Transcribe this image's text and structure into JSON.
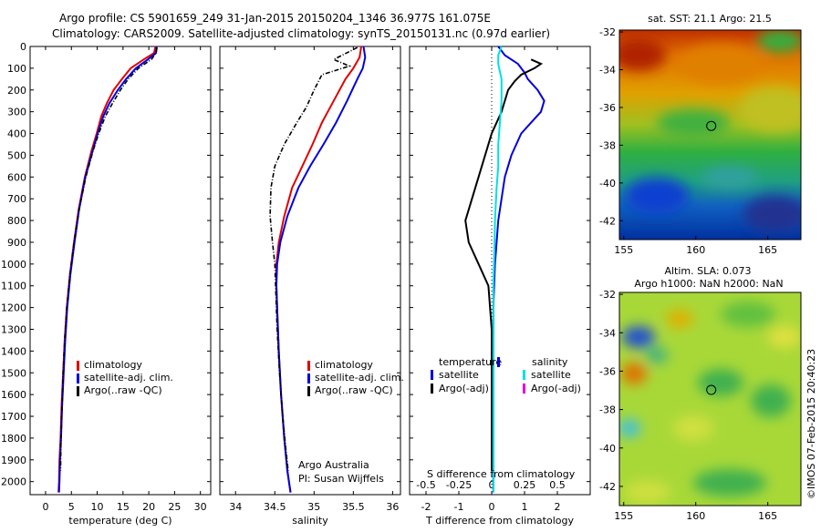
{
  "header": {
    "line1": "Argo profile: CS 5901659_249 31-Jan-2015 20150204_1346 36.977S 161.075E",
    "line2": "Climatology: CARS2009. Satellite-adjusted climatology: synTS_20150131.nc (0.97d earlier)"
  },
  "colors": {
    "climatology": "#e00000",
    "satellite": "#0000e0",
    "argo": "#000000",
    "satellite_salinity": "#00e0e0",
    "argo_salinity_adj": "#e000e0"
  },
  "chart_data": [
    {
      "type": "line",
      "title": "",
      "xlabel": "temperature (deg C)",
      "ylabel": "",
      "xlim": [
        -3,
        32
      ],
      "ylim": [
        2060,
        0
      ],
      "xticks": [
        "0",
        "5",
        "10",
        "15",
        "20",
        "25",
        "30"
      ],
      "yticks": [
        "0",
        "100",
        "200",
        "300",
        "400",
        "500",
        "600",
        "700",
        "800",
        "900",
        "1000",
        "1100",
        "1200",
        "1300",
        "1400",
        "1500",
        "1600",
        "1700",
        "1800",
        "1900",
        "2000"
      ],
      "legend": [
        "climatology",
        "satellite-adj. clim.",
        "Argo(..raw -QC)"
      ],
      "series": [
        {
          "name": "climatology",
          "style": "solid",
          "color": "#e00000",
          "x": [
            21.3,
            21.0,
            19.0,
            16.5,
            14.8,
            13.2,
            11.9,
            10.8,
            9.9,
            8.9,
            7.6,
            6.4,
            5.5,
            4.7,
            4.1,
            3.7,
            3.4,
            3.1,
            2.9,
            2.7,
            2.6,
            2.5
          ],
          "y": [
            0,
            30,
            60,
            100,
            150,
            200,
            260,
            320,
            400,
            480,
            600,
            750,
            900,
            1050,
            1200,
            1350,
            1500,
            1650,
            1800,
            1900,
            2000,
            2050
          ]
        },
        {
          "name": "satellite-adj. clim.",
          "style": "solid",
          "color": "#0000e0",
          "x": [
            21.5,
            21.4,
            19.8,
            17.5,
            15.6,
            14.0,
            12.4,
            11.2,
            10.1,
            9.1,
            7.7,
            6.5,
            5.6,
            4.8,
            4.2,
            3.8,
            3.5,
            3.2,
            3.0,
            2.8,
            2.7,
            2.6
          ],
          "y": [
            0,
            30,
            60,
            100,
            150,
            200,
            260,
            320,
            400,
            480,
            600,
            750,
            900,
            1050,
            1200,
            1350,
            1500,
            1650,
            1800,
            1900,
            2000,
            2050
          ]
        },
        {
          "name": "Argo(..raw -QC)",
          "style": "dashdot",
          "color": "#000000",
          "x": [
            21.6,
            21.4,
            20.5,
            18.0,
            16.0,
            14.5,
            13.0,
            11.6,
            10.3,
            9.2,
            7.8,
            6.5,
            5.5,
            4.7,
            4.1,
            3.7,
            3.4,
            3.2,
            3.0,
            2.9
          ],
          "y": [
            5,
            30,
            60,
            100,
            150,
            200,
            260,
            320,
            400,
            480,
            600,
            750,
            900,
            1050,
            1200,
            1350,
            1500,
            1650,
            1800,
            1950
          ]
        }
      ]
    },
    {
      "type": "line",
      "title": "",
      "xlabel": "salinity",
      "ylabel": "",
      "xlim": [
        33.8,
        36.1
      ],
      "ylim": [
        2060,
        0
      ],
      "xticks": [
        "34",
        "34.5",
        "35",
        "35.5",
        "36"
      ],
      "legend": [
        "climatology",
        "satellite-adj. clim.",
        "Argo(..raw -QC)"
      ],
      "annotation": [
        "Argo Australia",
        "PI: Susan Wijffels"
      ],
      "series": [
        {
          "name": "climatology",
          "style": "solid",
          "color": "#e00000",
          "x": [
            35.6,
            35.58,
            35.5,
            35.4,
            35.25,
            35.1,
            34.98,
            34.85,
            34.72,
            34.62,
            34.55,
            34.52,
            34.52,
            34.53,
            34.55,
            34.58,
            34.62,
            34.66,
            34.7
          ],
          "y": [
            0,
            50,
            100,
            150,
            250,
            350,
            450,
            550,
            650,
            780,
            900,
            1000,
            1100,
            1200,
            1400,
            1600,
            1800,
            1950,
            2050
          ]
        },
        {
          "name": "satellite-adj. clim.",
          "style": "solid",
          "color": "#0000e0",
          "x": [
            35.63,
            35.65,
            35.62,
            35.55,
            35.42,
            35.28,
            35.12,
            34.95,
            34.8,
            34.66,
            34.57,
            34.53,
            34.52,
            34.53,
            34.55,
            34.58,
            34.62,
            34.66,
            34.7
          ],
          "y": [
            0,
            50,
            100,
            150,
            250,
            350,
            450,
            550,
            650,
            780,
            900,
            1000,
            1100,
            1200,
            1400,
            1600,
            1800,
            1950,
            2050
          ]
        },
        {
          "name": "Argo(..raw -QC)",
          "style": "dashdot",
          "color": "#000000",
          "x": [
            35.55,
            35.25,
            35.45,
            35.1,
            35.0,
            34.9,
            34.78,
            34.62,
            34.5,
            34.45,
            34.44,
            34.47,
            34.5,
            34.51,
            34.53,
            34.56,
            34.6,
            34.64,
            34.67
          ],
          "y": [
            5,
            60,
            90,
            130,
            200,
            280,
            350,
            450,
            550,
            650,
            780,
            900,
            1000,
            1100,
            1300,
            1500,
            1700,
            1850,
            1950
          ]
        }
      ]
    },
    {
      "type": "line",
      "title": "",
      "xlabel": "T difference from climatology",
      "xlabel_top": "S difference from climatology",
      "xlim": [
        -2.5,
        3.0
      ],
      "ylim": [
        2060,
        0
      ],
      "xticks": [
        "-2",
        "-1",
        "0",
        "1",
        "2"
      ],
      "xticks_top": [
        "-0.5",
        "-0.25",
        "0",
        "0.25",
        "0.5"
      ],
      "legend": [
        "temperature",
        "satellite",
        "Argo(-adj)",
        "salinity",
        "satellite",
        "Argo(-adj)"
      ],
      "series": [
        {
          "name": "temperature satellite",
          "style": "solid",
          "color": "#0000e0",
          "x": [
            0.2,
            0.4,
            0.8,
            1.0,
            1.1,
            1.4,
            1.6,
            1.5,
            1.2,
            0.9,
            0.6,
            0.4,
            0.2,
            0.1,
            0.05,
            0.05,
            0.05,
            0.05,
            0.05
          ],
          "y": [
            0,
            40,
            80,
            120,
            150,
            200,
            250,
            300,
            350,
            400,
            500,
            600,
            800,
            1000,
            1200,
            1400,
            1600,
            1800,
            2050
          ]
        },
        {
          "name": "temperature Argo(-adj)",
          "style": "solid",
          "color": "#000000",
          "x": [
            1.2,
            1.5,
            1.3,
            0.9,
            0.7,
            0.5,
            0.3,
            0.0,
            -0.2,
            -0.4,
            -0.6,
            -0.8,
            -0.7,
            -0.4,
            -0.1,
            0.0,
            0.0,
            0.0
          ],
          "y": [
            60,
            80,
            100,
            130,
            160,
            200,
            300,
            400,
            500,
            600,
            700,
            800,
            900,
            1000,
            1100,
            1300,
            1600,
            1950
          ]
        },
        {
          "name": "salinity satellite",
          "style": "solid",
          "color": "#00e0e0",
          "x": [
            0.3,
            0.2,
            0.2,
            0.3,
            0.3,
            0.25,
            0.2,
            0.2,
            0.15,
            0.1,
            0.08,
            0.05,
            0.05,
            0.05,
            0.05,
            0.05,
            0.05
          ],
          "y": [
            0,
            40,
            80,
            150,
            250,
            350,
            450,
            550,
            650,
            800,
            950,
            1100,
            1300,
            1500,
            1700,
            1900,
            2050
          ]
        }
      ]
    }
  ],
  "maps": {
    "sst": {
      "title": "sat. SST: 21.1  Argo: 21.5",
      "xticks": [
        "155",
        "160",
        "165"
      ],
      "yticks": [
        "-32",
        "-34",
        "-36",
        "-38",
        "-40",
        "-42"
      ],
      "xlim": [
        154.7,
        167.3
      ],
      "ylim": [
        -43,
        -31.9
      ],
      "marker": {
        "lon": 161.075,
        "lat": -36.977
      }
    },
    "sla": {
      "title_line1": "Altim. SLA: 0.073",
      "title_line2": "Argo h1000: NaN h2000: NaN",
      "xticks": [
        "155",
        "160",
        "165"
      ],
      "yticks": [
        "-32",
        "-34",
        "-36",
        "-38",
        "-40",
        "-42"
      ],
      "xlim": [
        154.7,
        167.3
      ],
      "ylim": [
        -43,
        -31.9
      ],
      "marker": {
        "lon": 161.075,
        "lat": -36.977
      }
    }
  },
  "credit": "©IMOS 07-Feb-2015 20:40:23"
}
